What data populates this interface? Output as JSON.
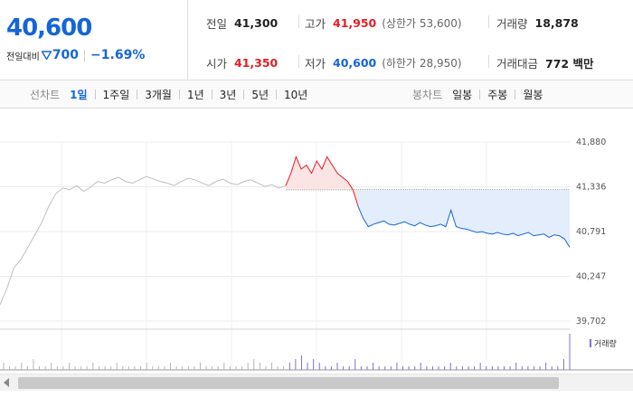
{
  "quote": {
    "current_price": "40,600",
    "change_label": "전일대비",
    "change_amount": "700",
    "change_rate": "−1.69%",
    "stats": {
      "prev_close_label": "전일",
      "prev_close": "41,300",
      "high_label": "고가",
      "high": "41,950",
      "upper_limit": "(상한가 53,600)",
      "volume_label": "거래량",
      "volume": "18,878",
      "open_label": "시가",
      "open": "41,350",
      "low_label": "저가",
      "low": "40,600",
      "lower_limit": "(하한가 28,950)",
      "value_label": "거래대금",
      "value": "772 백만"
    }
  },
  "period_bar": {
    "line_chart_label": "선차트",
    "line_tabs": [
      "1일",
      "1주일",
      "3개월",
      "1년",
      "3년",
      "5년",
      "10년"
    ],
    "active_tab": "1일",
    "candle_chart_label": "봉차트",
    "candle_tabs": [
      "일봉",
      "주봉",
      "월봉"
    ]
  },
  "chart": {
    "volume_label": "거래량",
    "colors": {
      "up": "#e31e24",
      "down": "#1465d8",
      "prior": "#bfbfbf",
      "volume": "#7e6fd8"
    }
  },
  "chart_data": {
    "type": "line",
    "ylim": [
      39702,
      41880
    ],
    "y_ticks": [
      "41,880",
      "41,336",
      "40,791",
      "40,247",
      "39,702"
    ],
    "reference_price": 41300,
    "prior_series": [
      39900,
      40100,
      40350,
      40450,
      40600,
      40750,
      40900,
      41100,
      41250,
      41320,
      41300,
      41350,
      41280,
      41330,
      41400,
      41380,
      41420,
      41450,
      41400,
      41380,
      41420,
      41460,
      41430,
      41400,
      41380,
      41350,
      41400,
      41440,
      41420,
      41380,
      41350,
      41400,
      41430,
      41380,
      41360,
      41400,
      41420,
      41380,
      41340,
      41360,
      41320,
      41350
    ],
    "today_series": [
      41350,
      41500,
      41700,
      41550,
      41600,
      41500,
      41650,
      41550,
      41700,
      41600,
      41500,
      41450,
      41400,
      41300,
      41100,
      40950,
      40850,
      40880,
      40900,
      40920,
      40880,
      40870,
      40890,
      40910,
      40880,
      40860,
      40900,
      40870,
      40850,
      40860,
      40880,
      40850,
      41050,
      40850,
      40830,
      40820,
      40800,
      40780,
      40790,
      40770,
      40760,
      40780,
      40760,
      40750,
      40770,
      40740,
      40760,
      40780,
      40740,
      40750,
      40760,
      40720,
      40750,
      40740,
      40700,
      40600
    ],
    "volume": [
      2,
      1,
      1,
      2,
      1,
      3,
      1,
      1,
      2,
      1,
      1,
      2,
      1,
      1,
      1,
      2,
      1,
      1,
      1,
      2,
      1,
      1,
      1,
      1,
      2,
      1,
      1,
      1,
      2,
      1,
      1,
      1,
      1,
      2,
      1,
      1,
      1,
      2,
      1,
      1,
      1,
      2,
      3,
      2,
      1,
      2,
      1,
      1,
      2,
      3,
      4,
      2,
      3,
      2,
      1,
      1,
      2,
      1,
      1,
      3,
      1,
      1,
      2,
      1,
      1,
      1,
      2,
      1,
      1,
      1,
      2,
      1,
      1,
      1,
      1,
      2,
      1,
      1,
      1,
      1,
      2,
      1,
      1,
      1,
      1,
      1,
      2,
      1,
      1,
      1,
      1,
      2,
      1,
      1,
      3,
      10
    ]
  }
}
